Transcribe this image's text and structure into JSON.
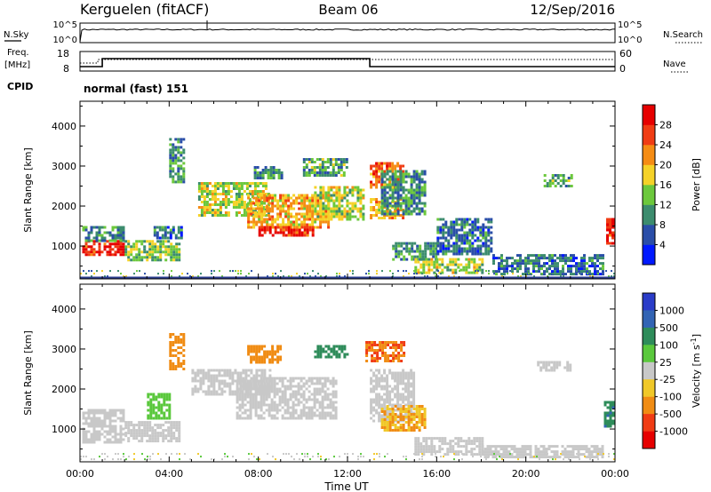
{
  "header": {
    "site": "Kerguelen (fitACF)",
    "beam": "Beam 06",
    "date": "12/Sep/2016"
  },
  "noise_panel": {
    "left_label": "N.Sky",
    "left_ticks": [
      "10^5",
      "10^0"
    ],
    "right_label": "N.Search",
    "right_ticks": [
      "10^5",
      "10^0"
    ]
  },
  "freq_panel": {
    "left_label_line1": "Freq.",
    "left_label_line2": "[MHz]",
    "left_ticks": [
      "18",
      "8"
    ],
    "right_label": "Nave",
    "right_ticks": [
      "60",
      "0"
    ],
    "cpid_label": "CPID",
    "cpid_text": "normal (fast) 151"
  },
  "colors": {
    "power_scale": [
      "#0019ff",
      "#2a4ea8",
      "#3c8c6e",
      "#6cc83c",
      "#f5d228",
      "#f58c14",
      "#f03c14",
      "#e60000"
    ],
    "velocity_scale": [
      "#2a3cc8",
      "#3264b4",
      "#2e8c5a",
      "#5ac83c",
      "#c8c8c8",
      "#f0c828",
      "#f08c14",
      "#f03c14",
      "#e60000"
    ]
  },
  "chart_data": [
    {
      "type": "heatmap",
      "panel": "power",
      "ylabel": "Slant Range [km]",
      "ylim": [
        180,
        4620
      ],
      "yticks": [
        1000,
        2000,
        3000,
        4000
      ],
      "xlim": [
        0,
        24
      ],
      "xticks": [
        "00:00",
        "04:00",
        "08:00",
        "12:00",
        "16:00",
        "20:00",
        "00:00"
      ],
      "colorbar_label": "Power [dB]",
      "colorbar_ticks": [
        "28",
        "24",
        "20",
        "16",
        "12",
        "8",
        "4"
      ],
      "colorbar_range": [
        0,
        32
      ],
      "regions": [
        {
          "t": [
            0.1,
            1.9
          ],
          "r": [
            800,
            1150
          ],
          "value": 28
        },
        {
          "t": [
            0.1,
            2.0
          ],
          "r": [
            1150,
            1500
          ],
          "value": 10
        },
        {
          "t": [
            2.0,
            4.5
          ],
          "r": [
            650,
            1150
          ],
          "value": 14
        },
        {
          "t": [
            3.3,
            4.5
          ],
          "r": [
            1200,
            1500
          ],
          "value": 8
        },
        {
          "t": [
            4.0,
            4.6
          ],
          "r": [
            2600,
            3700
          ],
          "value": 10
        },
        {
          "t": [
            5.3,
            8.5
          ],
          "r": [
            1800,
            2600
          ],
          "value": 16
        },
        {
          "t": [
            7.5,
            11.2
          ],
          "r": [
            1500,
            2300
          ],
          "value": 20
        },
        {
          "t": [
            8.0,
            10.5
          ],
          "r": [
            1250,
            1500
          ],
          "value": 28
        },
        {
          "t": [
            7.8,
            9.0
          ],
          "r": [
            2700,
            3000
          ],
          "value": 10
        },
        {
          "t": [
            10.5,
            12.7
          ],
          "r": [
            1700,
            2500
          ],
          "value": 16
        },
        {
          "t": [
            10.0,
            12.0
          ],
          "r": [
            2800,
            3200
          ],
          "value": 12
        },
        {
          "t": [
            13.0,
            14.5
          ],
          "r": [
            2500,
            3100
          ],
          "value": 24
        },
        {
          "t": [
            13.0,
            14.5
          ],
          "r": [
            1700,
            2200
          ],
          "value": 20
        },
        {
          "t": [
            13.5,
            15.5
          ],
          "r": [
            1800,
            2900
          ],
          "value": 10
        },
        {
          "t": [
            14.0,
            16.0
          ],
          "r": [
            650,
            1100
          ],
          "value": 10
        },
        {
          "t": [
            15.0,
            18.0
          ],
          "r": [
            320,
            700
          ],
          "value": 16
        },
        {
          "t": [
            16.0,
            18.5
          ],
          "r": [
            800,
            1700
          ],
          "value": 8
        },
        {
          "t": [
            18.5,
            23.5
          ],
          "r": [
            320,
            800
          ],
          "value": 8
        },
        {
          "t": [
            20.8,
            22.0
          ],
          "r": [
            2500,
            2800
          ],
          "value": 12
        },
        {
          "t": [
            23.6,
            24.0
          ],
          "r": [
            1100,
            1700
          ],
          "value": 28
        }
      ]
    },
    {
      "type": "heatmap",
      "panel": "velocity",
      "ylabel": "Slant Range [km]",
      "ylim": [
        180,
        4620
      ],
      "yticks": [
        1000,
        2000,
        3000,
        4000
      ],
      "xlim": [
        0,
        24
      ],
      "xlabel": "Time UT",
      "xticks": [
        "00:00",
        "04:00",
        "08:00",
        "12:00",
        "16:00",
        "20:00",
        "00:00"
      ],
      "colorbar_label": "Velocity [m s-1]",
      "colorbar_ticks": [
        "1000",
        "500",
        "100",
        "25",
        "-25",
        "-100",
        "-500",
        "-1000"
      ],
      "regions": [
        {
          "t": [
            0.1,
            2.0
          ],
          "r": [
            700,
            1500
          ],
          "value": 0
        },
        {
          "t": [
            2.0,
            4.5
          ],
          "r": [
            700,
            1200
          ],
          "value": 0
        },
        {
          "t": [
            3.0,
            4.0
          ],
          "r": [
            1300,
            1900
          ],
          "value": 50
        },
        {
          "t": [
            4.0,
            4.6
          ],
          "r": [
            2500,
            3400
          ],
          "value": -300
        },
        {
          "t": [
            5.0,
            8.5
          ],
          "r": [
            1900,
            2500
          ],
          "value": 0
        },
        {
          "t": [
            7.0,
            11.5
          ],
          "r": [
            1300,
            2300
          ],
          "value": 0
        },
        {
          "t": [
            7.5,
            9.0
          ],
          "r": [
            2700,
            3100
          ],
          "value": -300
        },
        {
          "t": [
            10.5,
            12.0
          ],
          "r": [
            2800,
            3100
          ],
          "value": 200
        },
        {
          "t": [
            12.8,
            14.5
          ],
          "r": [
            2700,
            3200
          ],
          "value": -500
        },
        {
          "t": [
            13.0,
            15.0
          ],
          "r": [
            1200,
            2500
          ],
          "value": 0
        },
        {
          "t": [
            13.5,
            15.5
          ],
          "r": [
            1000,
            1600
          ],
          "value": -100
        },
        {
          "t": [
            15.0,
            18.0
          ],
          "r": [
            350,
            800
          ],
          "value": 0
        },
        {
          "t": [
            18.0,
            23.5
          ],
          "r": [
            300,
            600
          ],
          "value": 0
        },
        {
          "t": [
            20.5,
            22.0
          ],
          "r": [
            2500,
            2700
          ],
          "value": 0
        },
        {
          "t": [
            23.5,
            24.0
          ],
          "r": [
            1100,
            1700
          ],
          "value": 400
        }
      ]
    }
  ]
}
